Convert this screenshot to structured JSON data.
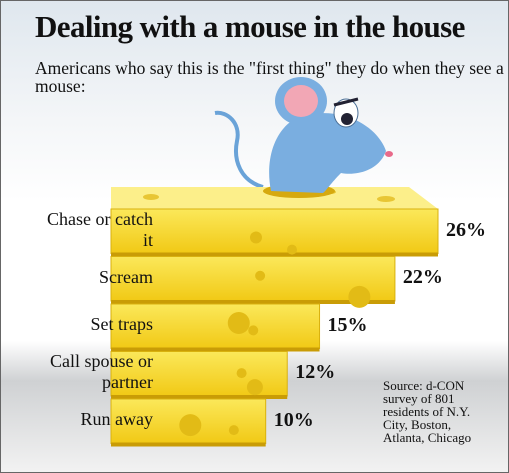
{
  "chart_data": {
    "type": "bar",
    "title": "Dealing with a mouse in the house",
    "subtitle": "Americans who say this is the \"first thing\" they do when they see a mouse:",
    "categories": [
      "Chase or catch it",
      "Scream",
      "Set traps",
      "Call spouse or partner",
      "Run away"
    ],
    "values": [
      26,
      22,
      15,
      12,
      10
    ],
    "value_labels": [
      "26%",
      "22%",
      "15%",
      "12%",
      "10%"
    ],
    "color": "#f7d92a",
    "source": "Source: d-CON survey of 801 residents of N.Y. City, Boston, Atlanta, Chicago"
  }
}
